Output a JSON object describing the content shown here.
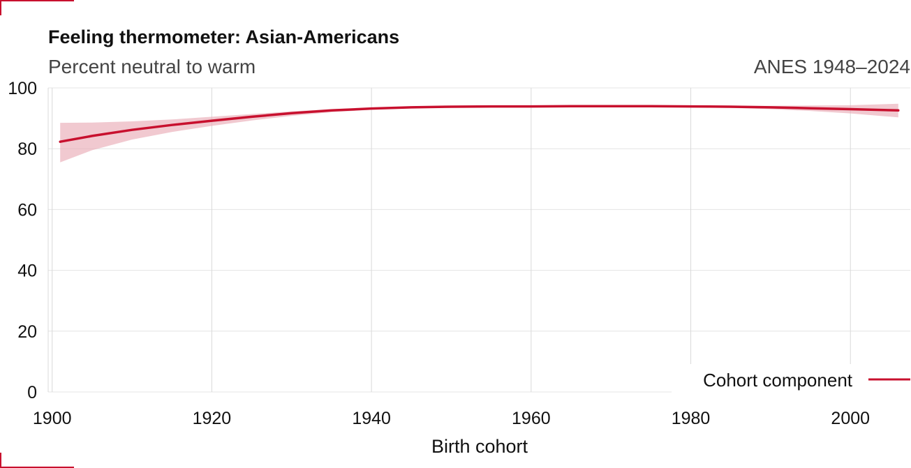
{
  "colors": {
    "accent": "#c8102e",
    "band": "#e8a8b3",
    "grid": "#e4e4e4",
    "corner_marks": "#c8102e"
  },
  "chart_data": {
    "type": "line",
    "title": "Feeling thermometer: Asian-Americans",
    "subtitle": "Percent neutral to warm",
    "source_label": "ANES 1948–2024",
    "xlabel": "Birth cohort",
    "ylabel": "",
    "xlim": [
      1899.5,
      2007.5
    ],
    "ylim": [
      0,
      100
    ],
    "x_ticks": [
      "1900",
      "1920",
      "1940",
      "1960",
      "1980",
      "2000"
    ],
    "x_tick_values": [
      1900,
      1920,
      1940,
      1960,
      1980,
      2000
    ],
    "y_ticks": [
      "0",
      "20",
      "40",
      "60",
      "80",
      "100"
    ],
    "y_tick_values": [
      0,
      20,
      40,
      60,
      80,
      100
    ],
    "grid": true,
    "legend_position": "bottom-right",
    "series": [
      {
        "name": "Cohort component",
        "color": "#c8102e",
        "x": [
          1901,
          1905,
          1910,
          1915,
          1920,
          1925,
          1930,
          1935,
          1940,
          1945,
          1950,
          1955,
          1960,
          1965,
          1970,
          1975,
          1980,
          1985,
          1990,
          1995,
          2000,
          2006
        ],
        "y": [
          82.3,
          84.2,
          86.2,
          87.8,
          89.2,
          90.5,
          91.7,
          92.6,
          93.2,
          93.6,
          93.8,
          93.9,
          93.9,
          94.0,
          94.0,
          94.0,
          93.9,
          93.8,
          93.6,
          93.3,
          93.0,
          92.6
        ],
        "lower": [
          75.5,
          79.5,
          83.0,
          85.5,
          87.5,
          89.3,
          90.8,
          92.0,
          92.8,
          93.3,
          93.5,
          93.6,
          93.6,
          93.7,
          93.7,
          93.7,
          93.6,
          93.4,
          93.0,
          92.4,
          91.6,
          90.3
        ],
        "upper": [
          88.5,
          88.6,
          89.0,
          89.6,
          90.5,
          91.4,
          92.3,
          93.0,
          93.5,
          93.8,
          94.1,
          94.2,
          94.2,
          94.3,
          94.3,
          94.3,
          94.2,
          94.1,
          94.1,
          94.2,
          94.3,
          94.8
        ]
      }
    ]
  }
}
